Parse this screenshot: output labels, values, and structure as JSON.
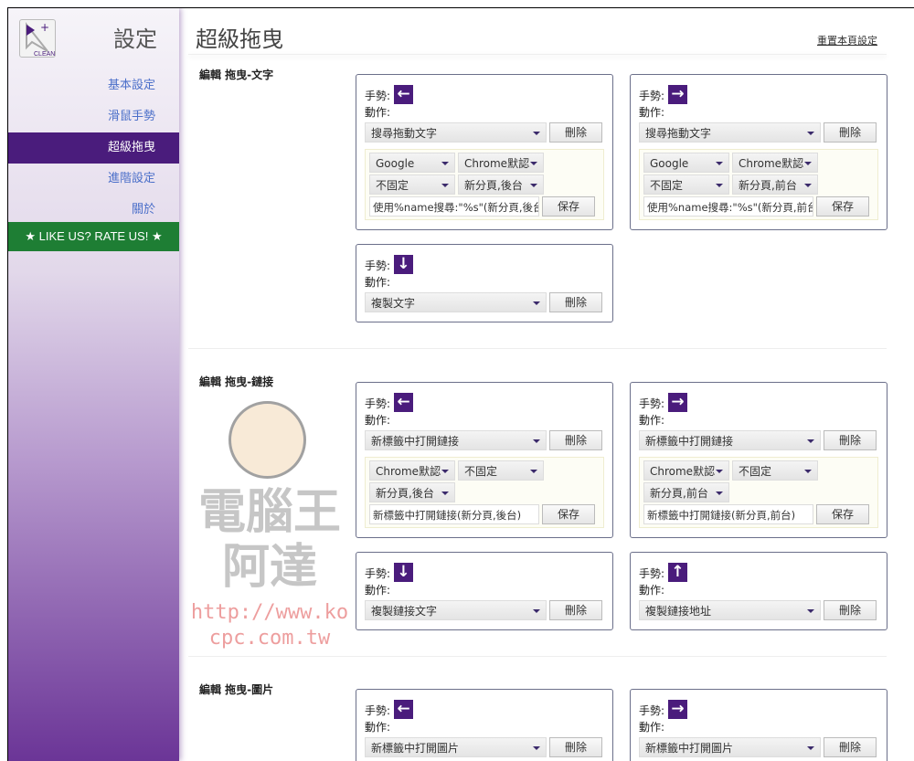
{
  "sidebar": {
    "title": "設定",
    "logo_text": "CLEAN",
    "items": [
      {
        "label": "基本設定"
      },
      {
        "label": "滑鼠手勢"
      },
      {
        "label": "超級拖曳",
        "active": true
      },
      {
        "label": "進階設定"
      },
      {
        "label": "關於"
      }
    ],
    "rate": "★ LIKE US? RATE US! ★"
  },
  "header": {
    "title": "超級拖曳",
    "reset": "重置本頁設定"
  },
  "labels": {
    "gesture": "手勢:",
    "action": "動作:",
    "delete": "刪除",
    "save": "保存"
  },
  "sections": [
    {
      "title": "編輯 拖曳-文字",
      "cards": [
        {
          "gesture": "left",
          "action": "搜尋拖動文字",
          "opts": [
            "Google",
            "Chrome默認",
            "不固定",
            "新分頁,後台"
          ],
          "text": "使用%name搜尋:\"%s\"(新分頁,後台)"
        },
        {
          "gesture": "right",
          "action": "搜尋拖動文字",
          "opts": [
            "Google",
            "Chrome默認",
            "不固定",
            "新分頁,前台"
          ],
          "text": "使用%name搜尋:\"%s\"(新分頁,前台)"
        },
        {
          "gesture": "down",
          "action": "複製文字"
        }
      ]
    },
    {
      "title": "編輯 拖曳-鏈接",
      "cards": [
        {
          "gesture": "left",
          "action": "新標籤中打開鏈接",
          "opts": [
            "Chrome默認",
            "不固定",
            "新分頁,後台"
          ],
          "text": "新標籤中打開鏈接(新分頁,後台)"
        },
        {
          "gesture": "right",
          "action": "新標籤中打開鏈接",
          "opts": [
            "Chrome默認",
            "不固定",
            "新分頁,前台"
          ],
          "text": "新標籤中打開鏈接(新分頁,前台)"
        },
        {
          "gesture": "down",
          "action": "複製鏈接文字"
        },
        {
          "gesture": "up",
          "action": "複製鏈接地址"
        }
      ]
    },
    {
      "title": "編輯 拖曳-圖片",
      "cards": [
        {
          "gesture": "left",
          "action": "新標籤中打開圖片"
        },
        {
          "gesture": "right",
          "action": "新標籤中打開圖片"
        }
      ]
    }
  ],
  "watermark": {
    "name": "電腦王阿達",
    "url": "http://www.kocpc.com.tw"
  },
  "colors": {
    "accent": "#4a1c7c",
    "rate_bg": "#1e7e34",
    "link": "#4b6fc9"
  }
}
